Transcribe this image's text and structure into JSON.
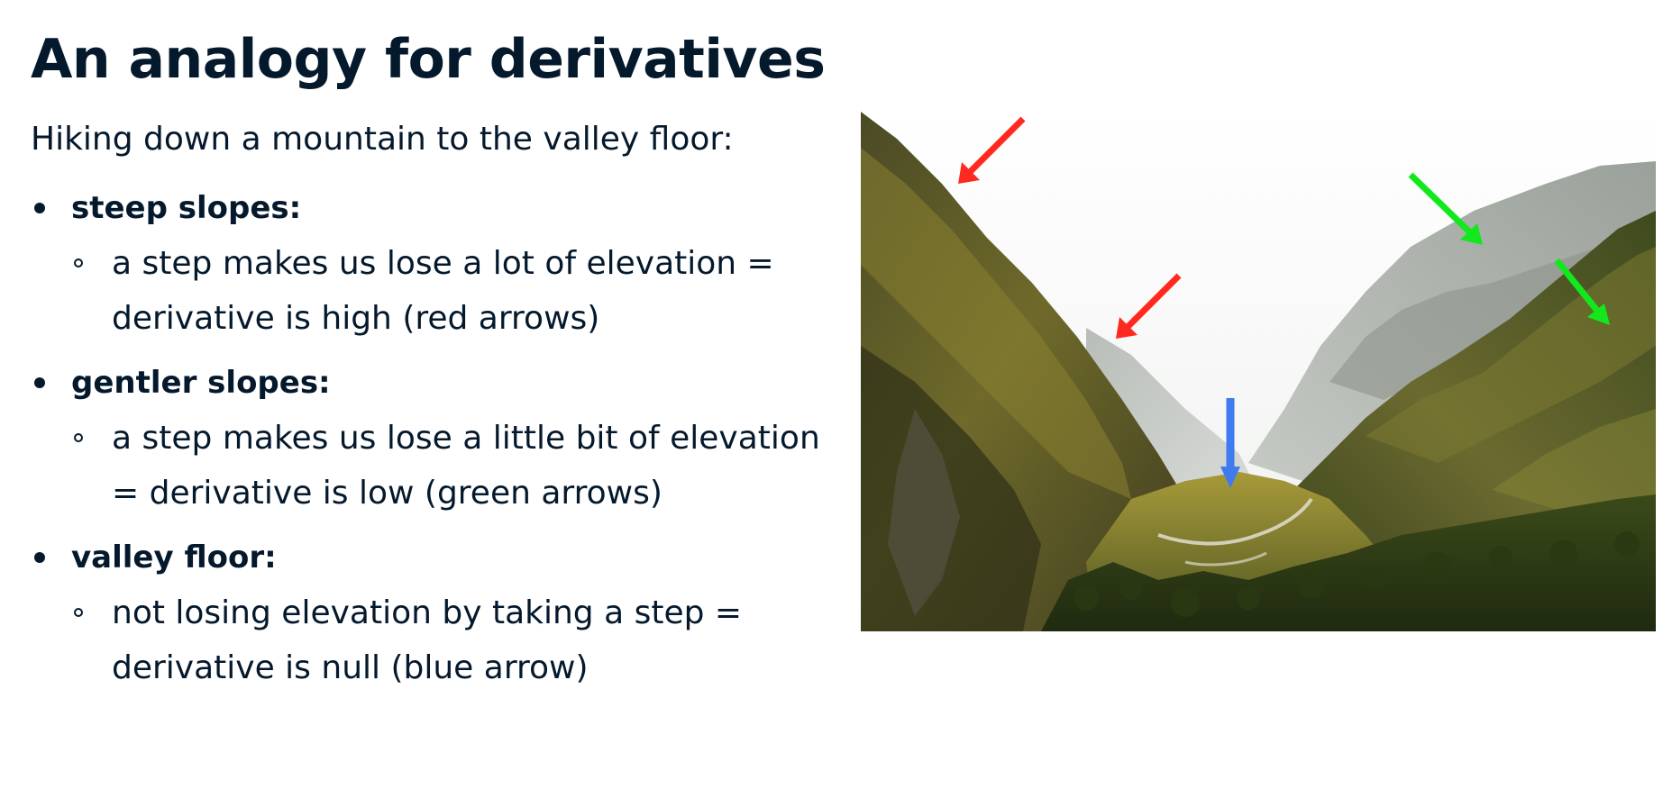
{
  "slide": {
    "title": "An analogy for derivatives",
    "intro": "Hiking down a mountain to the valley floor:",
    "bullets": [
      {
        "heading": "steep slopes:",
        "detail": "a step makes us lose a lot of elevation = derivative is high (red arrows)"
      },
      {
        "heading": "gentler slopes:",
        "detail": "a step makes us lose a little bit of elevation = derivative is low (green arrows)"
      },
      {
        "heading": "valley floor:",
        "detail": "not losing elevation by taking a step = derivative is null (blue arrow)"
      }
    ]
  },
  "image": {
    "subject": "mountain valley photo",
    "arrow_colors": {
      "steep": "#ff2a1f",
      "gentle": "#12e81c",
      "floor": "#3f7af0"
    }
  }
}
